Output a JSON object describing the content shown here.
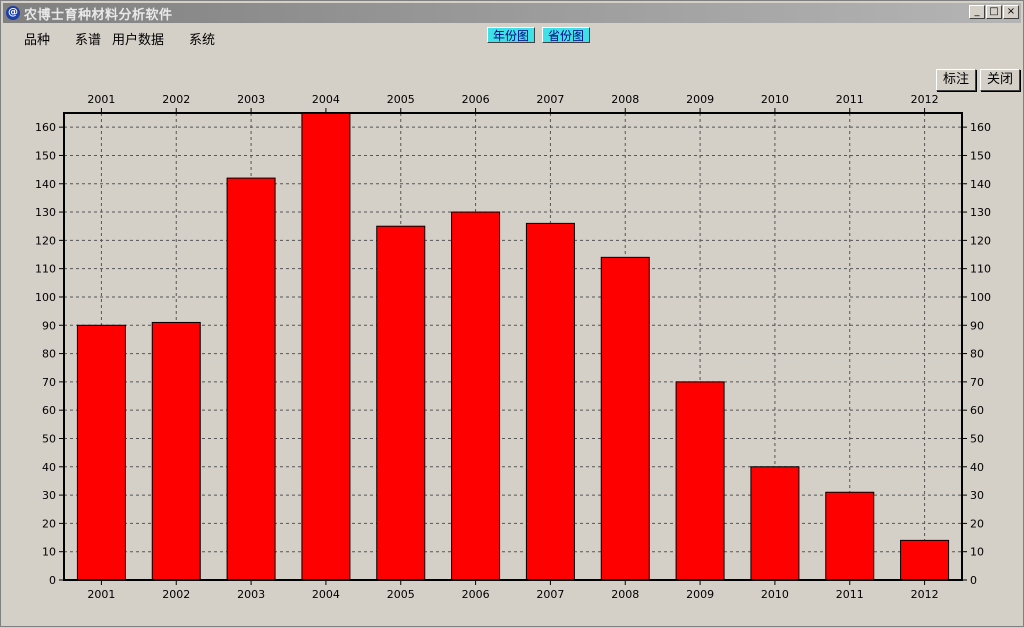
{
  "window": {
    "title": "农博士育种材料分析软件",
    "icon": "@",
    "min_glyph": "_",
    "max_glyph": "□",
    "close_glyph": "×"
  },
  "menu": {
    "items": [
      "品种",
      "系谱",
      "用户数据",
      "系统"
    ]
  },
  "tabs": {
    "year_chart": "年份图",
    "province_chart": "省份图"
  },
  "actions": {
    "annotate": "标注",
    "close": "关闭"
  },
  "colors": {
    "bar": "#ff0000",
    "tab": "#40e0e8"
  },
  "chart_data": {
    "type": "bar",
    "categories": [
      "2001",
      "2002",
      "2003",
      "2004",
      "2005",
      "2006",
      "2007",
      "2008",
      "2009",
      "2010",
      "2011",
      "2012"
    ],
    "values": [
      90,
      91,
      142,
      166,
      125,
      130,
      126,
      114,
      70,
      40,
      31,
      14
    ],
    "ylim": [
      0,
      165
    ],
    "yticks": [
      0,
      10,
      20,
      30,
      40,
      50,
      60,
      70,
      80,
      90,
      100,
      110,
      120,
      130,
      140,
      150,
      160
    ],
    "grid": true,
    "title": "",
    "xlabel": "",
    "ylabel": ""
  }
}
